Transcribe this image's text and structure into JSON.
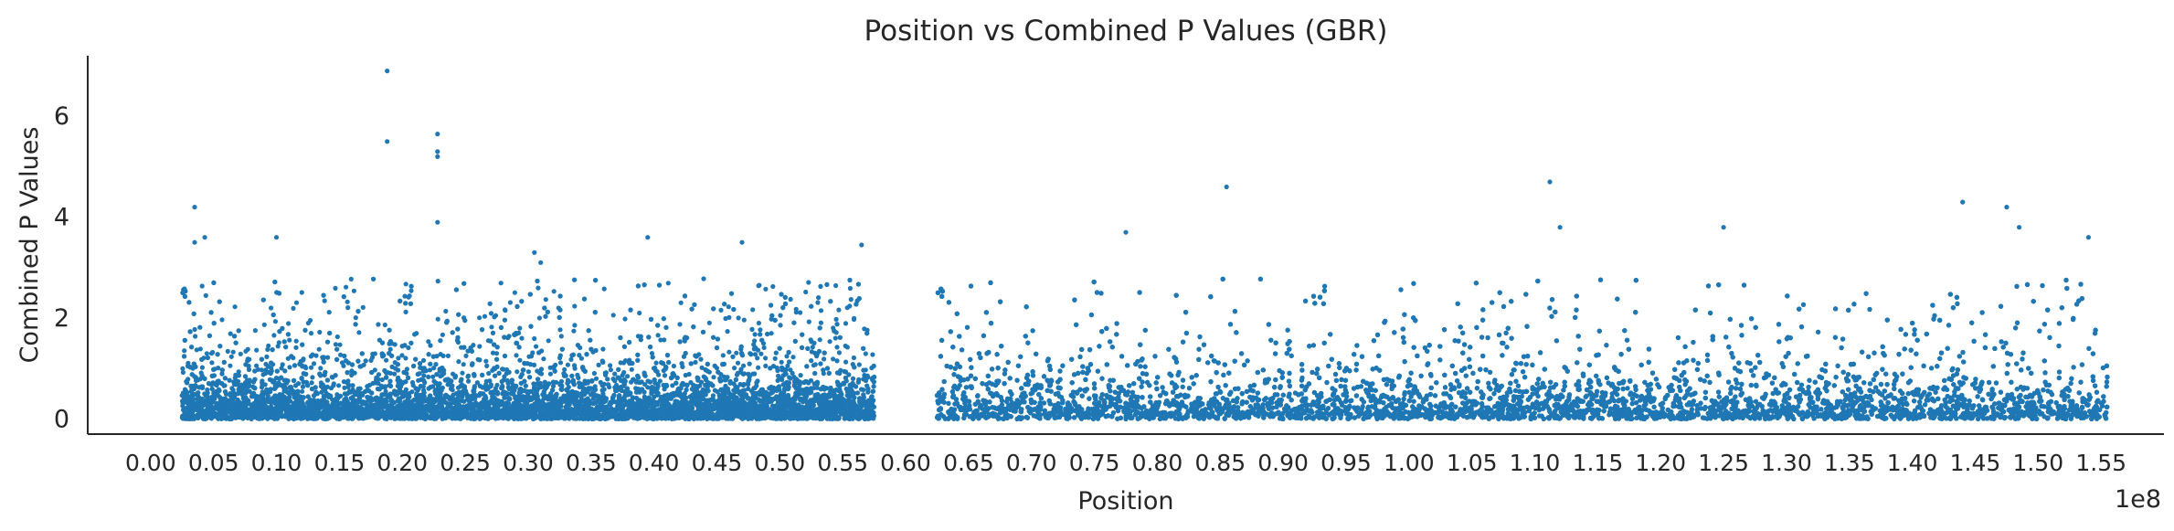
{
  "chart_data": {
    "type": "scatter",
    "title": "Position vs Combined P Values (GBR)",
    "xlabel": "Position",
    "ylabel": "Combined P Values",
    "x_offset_label": "1e8",
    "x_units": "1e8",
    "xlim": [
      -0.05,
      1.6
    ],
    "ylim": [
      -0.3,
      7.2
    ],
    "x_ticks": [
      0.0,
      0.05,
      0.1,
      0.15,
      0.2,
      0.25,
      0.3,
      0.35,
      0.4,
      0.45,
      0.5,
      0.55,
      0.6,
      0.65,
      0.7,
      0.75,
      0.8,
      0.85,
      0.9,
      0.95,
      1.0,
      1.05,
      1.1,
      1.15,
      1.2,
      1.25,
      1.3,
      1.35,
      1.4,
      1.45,
      1.5,
      1.55
    ],
    "x_tick_labels": [
      "0.00",
      "0.05",
      "0.10",
      "0.15",
      "0.20",
      "0.25",
      "0.30",
      "0.35",
      "0.40",
      "0.45",
      "0.50",
      "0.55",
      "0.60",
      "0.65",
      "0.70",
      "0.75",
      "0.80",
      "0.85",
      "0.90",
      "0.95",
      "1.00",
      "1.05",
      "1.10",
      "1.15",
      "1.20",
      "1.25",
      "1.30",
      "1.35",
      "1.40",
      "1.45",
      "1.50",
      "1.55"
    ],
    "y_ticks": [
      0,
      2,
      4,
      6
    ],
    "y_tick_labels": [
      "0",
      "2",
      "4",
      "6"
    ],
    "grid": false,
    "color": "#1f77b4",
    "data_ranges": [
      [
        0.025,
        0.575
      ],
      [
        0.625,
        1.555
      ]
    ],
    "notable_points": [
      {
        "x": 0.188,
        "y": 6.9
      },
      {
        "x": 0.188,
        "y": 5.5
      },
      {
        "x": 0.228,
        "y": 5.65
      },
      {
        "x": 0.228,
        "y": 5.3
      },
      {
        "x": 0.228,
        "y": 5.2
      },
      {
        "x": 0.228,
        "y": 3.9
      },
      {
        "x": 0.035,
        "y": 4.2
      },
      {
        "x": 0.035,
        "y": 3.5
      },
      {
        "x": 0.043,
        "y": 3.6
      },
      {
        "x": 0.1,
        "y": 3.6
      },
      {
        "x": 0.305,
        "y": 3.3
      },
      {
        "x": 0.31,
        "y": 3.1
      },
      {
        "x": 0.395,
        "y": 3.6
      },
      {
        "x": 0.47,
        "y": 3.5
      },
      {
        "x": 0.565,
        "y": 3.45
      },
      {
        "x": 0.775,
        "y": 3.7
      },
      {
        "x": 0.855,
        "y": 4.6
      },
      {
        "x": 1.112,
        "y": 4.7
      },
      {
        "x": 1.12,
        "y": 3.8
      },
      {
        "x": 1.25,
        "y": 3.8
      },
      {
        "x": 1.44,
        "y": 4.3
      },
      {
        "x": 1.475,
        "y": 4.2
      },
      {
        "x": 1.485,
        "y": 3.8
      },
      {
        "x": 1.54,
        "y": 3.6
      }
    ]
  }
}
